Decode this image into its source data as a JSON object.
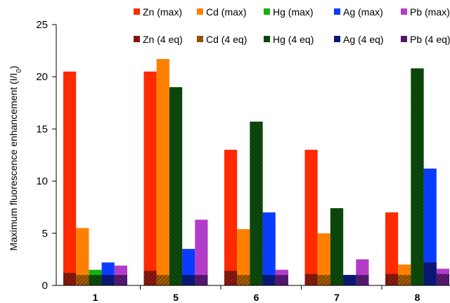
{
  "chart_data": {
    "type": "bar",
    "ylabel": "Maximum fluorescence enhancement (I/I",
    "ylabel_subscript": "0",
    "ylabel_close": ")",
    "ylim": [
      0,
      25
    ],
    "yticks": [
      "0",
      "5",
      "10",
      "15",
      "20",
      "25"
    ],
    "grid": false,
    "legend_position": "top-right",
    "categories": [
      "1",
      "5",
      "6",
      "7",
      "8"
    ],
    "series": [
      {
        "name": "Zn (max)",
        "color": "#ff2a00",
        "hatched": false,
        "values": [
          20.5,
          20.5,
          13.0,
          13.0,
          7.0
        ]
      },
      {
        "name": "Cd (max)",
        "color": "#ff8000",
        "hatched": false,
        "values": [
          5.5,
          21.7,
          5.4,
          5.0,
          2.0
        ]
      },
      {
        "name": "Hg (max)",
        "color": "#13b20f",
        "hatched": false,
        "values": [
          1.5,
          19.0,
          15.7,
          7.4,
          20.8
        ]
      },
      {
        "name": "Ag (max)",
        "color": "#0a3cff",
        "hatched": false,
        "values": [
          2.2,
          3.5,
          7.0,
          1.0,
          11.2
        ]
      },
      {
        "name": "Pb (max)",
        "color": "#b23cc8",
        "hatched": false,
        "values": [
          1.9,
          6.3,
          1.5,
          2.5,
          1.6
        ]
      },
      {
        "name": "Zn (4 eq)",
        "color": "#8c1a10",
        "hatched": true,
        "values": [
          1.2,
          1.4,
          1.4,
          1.1,
          1.1
        ]
      },
      {
        "name": "Cd (4 eq)",
        "color": "#a35a00",
        "hatched": true,
        "values": [
          1.0,
          1.0,
          1.0,
          1.0,
          1.0
        ]
      },
      {
        "name": "Hg (4 eq)",
        "color": "#0c4d0c",
        "hatched": true,
        "values": [
          1.0,
          19.0,
          15.7,
          7.4,
          20.8
        ]
      },
      {
        "name": "Ag (4 eq)",
        "color": "#0a1a80",
        "hatched": true,
        "values": [
          1.0,
          1.0,
          1.0,
          1.0,
          2.2
        ]
      },
      {
        "name": "Pb (4 eq)",
        "color": "#5a1a78",
        "hatched": true,
        "values": [
          1.0,
          1.0,
          1.0,
          1.0,
          1.1
        ]
      }
    ],
    "bar_order": [
      "Zn",
      "Cd",
      "Hg",
      "Ag",
      "Pb"
    ]
  }
}
